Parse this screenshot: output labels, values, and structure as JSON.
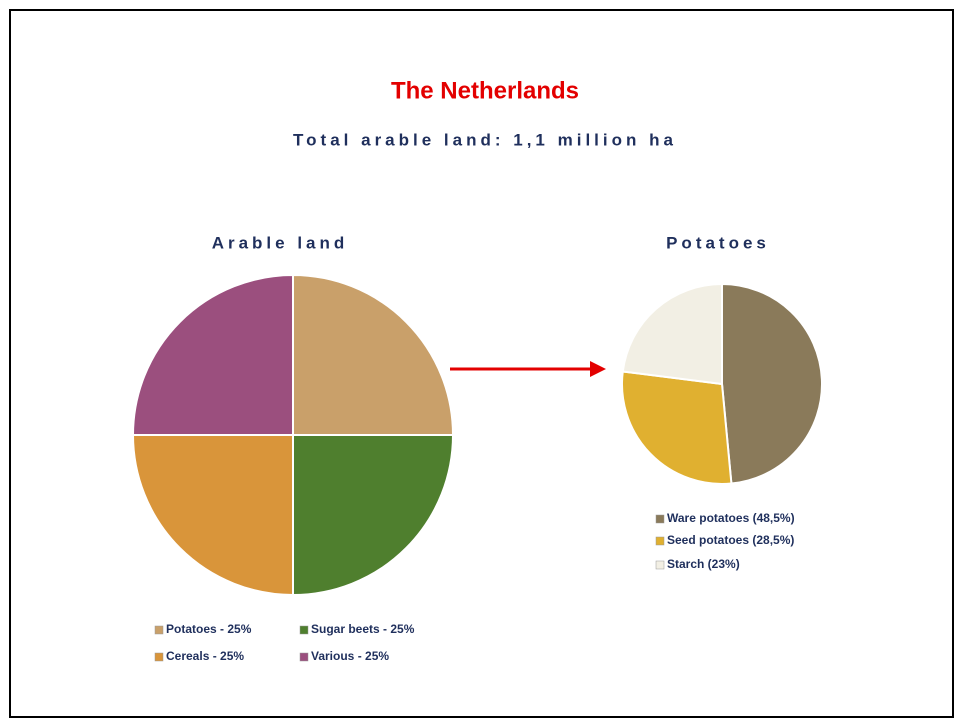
{
  "title": "The Netherlands",
  "subtitle": "Total arable land: 1,1 million ha",
  "chart_data": [
    {
      "type": "pie",
      "title": "Arable land",
      "categories": [
        "Potatoes - 25%",
        "Sugar beets - 25%",
        "Cereals - 25%",
        "Various - 25%"
      ],
      "values": [
        25,
        25,
        25,
        25
      ],
      "colors": [
        "#c9a06a",
        "#4f7f2e",
        "#d9953a",
        "#9b4f7e"
      ]
    },
    {
      "type": "pie",
      "title": "Potatoes",
      "categories": [
        "Ware potatoes (48,5%)",
        "Seed potatoes (28,5%)",
        "Starch (23%)"
      ],
      "values": [
        48.5,
        28.5,
        23
      ],
      "colors": [
        "#8a7a5a",
        "#e0b030",
        "#f2efe4"
      ]
    }
  ]
}
